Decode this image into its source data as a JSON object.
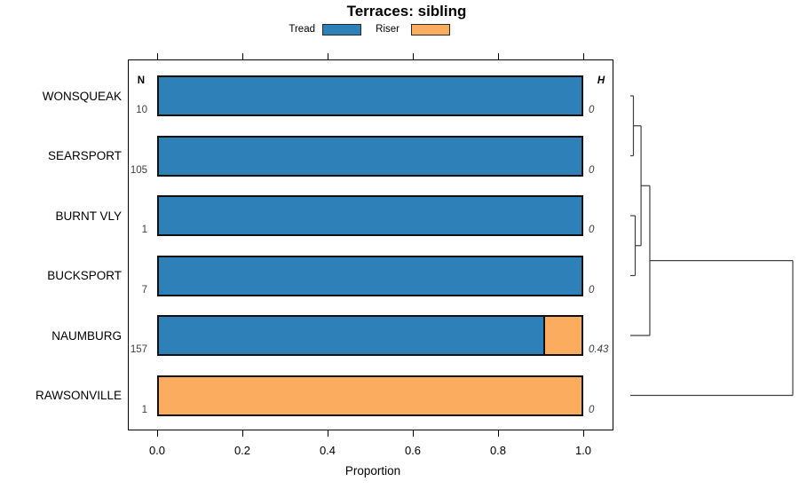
{
  "title": "Terraces: sibling",
  "columns": {
    "left_header": "N",
    "right_header": "H"
  },
  "axis": {
    "label": "Proportion"
  },
  "colors": {
    "tread": "#2E81B8",
    "riser": "#FBAC5F",
    "bar_border": "#101010",
    "dendrogram_line": "#404040",
    "value_text": "#3f3f3f"
  },
  "legend": {
    "items": [
      {
        "label": "Tread",
        "color": "#2E81B8"
      },
      {
        "label": "Riser",
        "color": "#FBAC5F"
      }
    ]
  },
  "chart_data": {
    "type": "bar",
    "stacked": true,
    "orientation": "horizontal",
    "title": "Terraces: sibling",
    "xlabel": "Proportion",
    "xlim": [
      0,
      1
    ],
    "x_ticks": [
      {
        "label": "0.0",
        "value": 0.0
      },
      {
        "label": "0.2",
        "value": 0.2
      },
      {
        "label": "0.4",
        "value": 0.4
      },
      {
        "label": "0.6",
        "value": 0.6
      },
      {
        "label": "0.8",
        "value": 0.8
      },
      {
        "label": "1.0",
        "value": 1.0
      }
    ],
    "categories": [
      "WONSQUEAK",
      "SEARSPORT",
      "BURNT VLY",
      "BUCKSPORT",
      "NAUMBURG",
      "RAWSONVILLE"
    ],
    "N": [
      10,
      105,
      1,
      7,
      157,
      1
    ],
    "H": [
      "0",
      "0",
      "0",
      "0",
      "0.43",
      "0"
    ],
    "series": [
      {
        "name": "Tread",
        "color": "#2E81B8",
        "values": [
          1.0,
          1.0,
          1.0,
          1.0,
          0.91,
          0.0
        ]
      },
      {
        "name": "Riser",
        "color": "#FBAC5F",
        "values": [
          0.0,
          0.0,
          0.0,
          0.0,
          0.09,
          1.0
        ]
      }
    ],
    "legend_position": "top",
    "grid": false,
    "dendrogram": {
      "side": "right",
      "height_unit": "relative (0 = leaf, 1 = root)",
      "merges": [
        {
          "members": [
            "WONSQUEAK",
            "SEARSPORT"
          ],
          "height": 0.019
        },
        {
          "members": [
            "BURNT VLY",
            "BUCKSPORT"
          ],
          "height": 0.03
        },
        {
          "members": [
            "WONSQUEAK+SEARSPORT",
            "BURNT VLY+BUCKSPORT"
          ],
          "height": 0.066
        },
        {
          "members": [
            "cluster above",
            "NAUMBURG"
          ],
          "height": 0.12
        },
        {
          "members": [
            "cluster above",
            "RAWSONVILLE"
          ],
          "height": 1.0
        }
      ],
      "tree": {
        "h": 1.0,
        "children": [
          {
            "h": 0.12,
            "children": [
              {
                "h": 0.066,
                "children": [
                  {
                    "h": 0.019,
                    "children": [
                      {
                        "leaf": 0
                      },
                      {
                        "leaf": 1
                      }
                    ]
                  },
                  {
                    "h": 0.03,
                    "children": [
                      {
                        "leaf": 2
                      },
                      {
                        "leaf": 3
                      }
                    ]
                  }
                ]
              },
              {
                "leaf": 4
              }
            ]
          },
          {
            "leaf": 5
          }
        ]
      }
    }
  }
}
